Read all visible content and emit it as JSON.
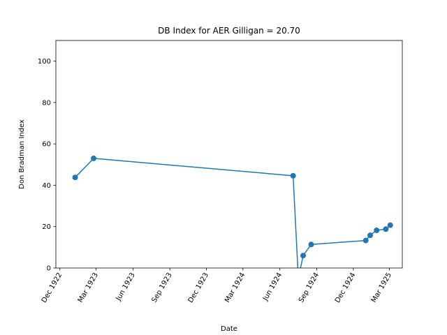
{
  "chart_data": {
    "type": "line",
    "title": "DB Index for AER Gilligan = 20.70",
    "xlabel": "Date",
    "ylabel": "Don Bradman Index",
    "ylim": [
      0,
      110
    ],
    "xlim": [
      "1922-11-21",
      "1925-04-02"
    ],
    "grid": false,
    "legend": "none",
    "x_ticks": [
      "1922-12-01",
      "1923-03-01",
      "1923-06-01",
      "1923-09-01",
      "1923-12-01",
      "1924-03-01",
      "1924-06-01",
      "1924-09-01",
      "1924-12-01",
      "1925-03-01"
    ],
    "x_tick_labels": [
      "Dec 1922",
      "Mar 1923",
      "Jun 1923",
      "Sep 1923",
      "Dec 1923",
      "Mar 1924",
      "Jun 1924",
      "Sep 1924",
      "Dec 1924",
      "Mar 1925"
    ],
    "y_ticks": [
      0,
      20,
      40,
      60,
      80,
      100
    ],
    "y_tick_labels": [
      "0",
      "20",
      "40",
      "60",
      "80",
      "100"
    ],
    "color": "#1f77b4",
    "points": [
      {
        "x": "1923-01-08",
        "y": 43.8
      },
      {
        "x": "1923-02-23",
        "y": 53.0
      },
      {
        "x": "1924-07-04",
        "y": 44.6
      },
      {
        "x": "1924-07-17",
        "y": -5.0
      },
      {
        "x": "1924-07-29",
        "y": 6.0
      },
      {
        "x": "1924-08-18",
        "y": 11.4
      },
      {
        "x": "1925-01-01",
        "y": 13.3
      },
      {
        "x": "1925-01-12",
        "y": 15.8
      },
      {
        "x": "1925-01-28",
        "y": 18.2
      },
      {
        "x": "1925-02-20",
        "y": 18.8
      },
      {
        "x": "1925-03-03",
        "y": 20.7
      }
    ]
  }
}
